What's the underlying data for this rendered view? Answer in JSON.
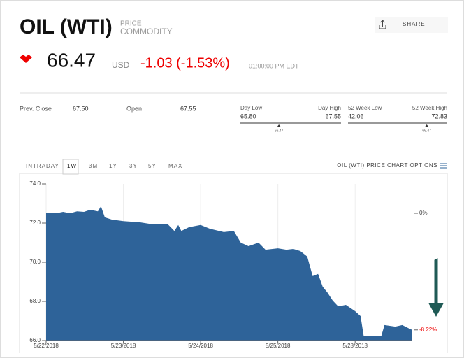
{
  "header": {
    "title": "OIL (WTI)",
    "kind": "PRICE",
    "category": "COMMODITY",
    "share": "SHARE",
    "price": "66.47",
    "currency": "USD",
    "change": "-1.03 (-1.53%)",
    "time": "01:00:00 PM EDT"
  },
  "stats": {
    "prev_close_label": "Prev. Close",
    "prev_close": "67.50",
    "open_label": "Open",
    "open": "67.55",
    "day_low_label": "Day Low",
    "day_low": 65.8,
    "day_low_text": "65.80",
    "day_high_label": "Day High",
    "day_high": 67.55,
    "day_high_text": "67.55",
    "day_marker": 66.47,
    "day_marker_text": "66.47",
    "wk_low_label": "52 Week Low",
    "wk_low": 42.06,
    "wk_low_text": "42.06",
    "wk_high_label": "52 Week High",
    "wk_high": 72.83,
    "wk_high_text": "72.83",
    "wk_marker": 66.47,
    "wk_marker_text": "66.47"
  },
  "tabs": [
    "INTRADAY",
    "1W",
    "3M",
    "1Y",
    "3Y",
    "5Y",
    "MAX"
  ],
  "active_tab": 1,
  "options": "OIL (WTI) PRICE CHART OPTIONS",
  "chart_data": {
    "type": "area",
    "color": "#2e6399",
    "x": [
      0,
      0.13,
      0.22,
      0.31,
      0.4,
      0.49,
      0.57,
      0.67,
      0.71,
      0.76,
      0.85,
      1,
      1.21,
      1.39,
      1.57,
      1.66,
      1.71,
      1.75,
      1.85,
      2,
      2.12,
      2.3,
      2.43,
      2.52,
      2.62,
      2.75,
      2.84,
      3,
      3.11,
      3.2,
      3.29,
      3.38,
      3.45,
      3.52,
      3.58,
      3.64,
      3.71,
      3.78,
      3.79,
      3.88,
      4,
      4.07,
      4.11,
      4.2,
      4.34,
      4.38,
      4.52,
      4.61,
      4.7,
      4.74
    ],
    "values": [
      72.5,
      72.5,
      72.57,
      72.5,
      72.6,
      72.57,
      72.68,
      72.6,
      72.86,
      72.29,
      72.18,
      72.1,
      72.04,
      71.93,
      71.96,
      71.6,
      71.9,
      71.6,
      71.79,
      71.9,
      71.71,
      71.54,
      71.6,
      71.0,
      70.82,
      71.0,
      70.64,
      70.71,
      70.64,
      70.68,
      70.57,
      70.29,
      69.29,
      69.4,
      68.75,
      68.46,
      68.04,
      67.75,
      67.75,
      67.82,
      67.5,
      67.25,
      66.25,
      66.25,
      66.25,
      66.79,
      66.71,
      66.79,
      66.61,
      66.54
    ],
    "xlim": [
      0,
      4.74
    ],
    "ylim": [
      66,
      74
    ],
    "xticks": [
      {
        "value": 0,
        "label": "5/22/2018"
      },
      {
        "value": 1,
        "label": "5/23/2018"
      },
      {
        "value": 2,
        "label": "5/24/2018"
      },
      {
        "value": 3,
        "label": "5/25/2018"
      },
      {
        "value": 4,
        "label": "5/28/2018"
      }
    ],
    "yticks": [
      {
        "value": 66,
        "label": "66.0"
      },
      {
        "value": 68,
        "label": "68.0"
      },
      {
        "value": 70,
        "label": "70.0"
      },
      {
        "value": 72,
        "label": "72.0"
      },
      {
        "value": 74,
        "label": "74.0"
      }
    ],
    "y2lim": [
      -8.97,
      2.07
    ],
    "y2ticks": [
      {
        "value": 0,
        "label": "0%"
      },
      {
        "value": -8.22,
        "label": "-8.22%"
      }
    ]
  }
}
